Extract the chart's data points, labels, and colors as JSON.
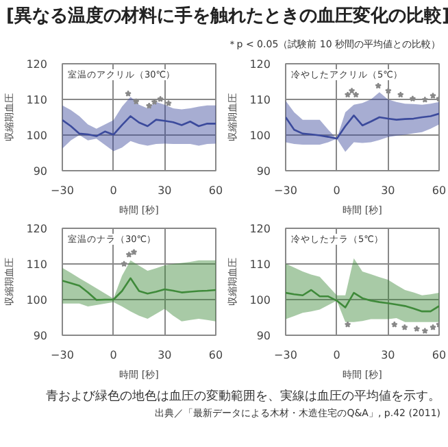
{
  "chart_data": [
    {
      "type": "other",
      "title": "[異なる温度の材料に手を触れたときの血圧変化の比較]",
      "annotations": [
        "＊p < 0.05（試験前 10 秒間の平均値との比較）"
      ]
    },
    {
      "type": "line",
      "annotations": [
        "室温のアクリル（30℃）"
      ],
      "xlabel": "時間 [秒]",
      "ylabel": "収縮期血圧",
      "xlim": [
        -30,
        60
      ],
      "ylim": [
        90,
        120
      ],
      "xticks": [
        -30,
        0,
        30,
        60
      ],
      "yticks": [
        90,
        100,
        110,
        120
      ],
      "grid": true,
      "series": [
        {
          "type": "line",
          "color": "#3b4a9c",
          "x": [
            -30,
            -25,
            -20,
            -15,
            -10,
            -5,
            0,
            5,
            10,
            15,
            20,
            25,
            30,
            35,
            40,
            45,
            50,
            55,
            60
          ],
          "values": [
            104.2,
            102.5,
            100.4,
            100.2,
            99.7,
            101.0,
            100.1,
            102.8,
            105.3,
            103.5,
            102.5,
            104.3,
            104.0,
            103.6,
            102.8,
            103.8,
            102.5,
            103.2,
            103.2
          ],
          "upper": [
            108.3,
            107,
            105.3,
            103,
            101.8,
            null,
            104.2,
            108,
            110.7,
            108.5,
            107.5,
            109.3,
            108.5,
            107.5,
            107.2,
            107.5,
            108,
            108.3,
            108.3
          ],
          "lower": [
            96.2,
            98.5,
            100,
            98.5,
            99,
            null,
            95.5,
            96.5,
            98.3,
            97.5,
            97,
            97.5,
            97.6,
            97.5,
            97.5,
            97.5,
            97,
            97.5,
            97.6
          ]
        },
        {
          "type": "scatter",
          "marker": "star",
          "color": "#888888",
          "x": [
            8.6,
            13.3,
            20.9,
            24,
            27.5,
            32.3
          ],
          "values": [
            111.6,
            109.4,
            108.2,
            109.3,
            110.1,
            108.9
          ]
        }
      ]
    },
    {
      "type": "line",
      "annotations": [
        "冷やしたアクリル（5℃）"
      ],
      "xlabel": "時間 [秒]",
      "ylabel": "収縮期血圧",
      "xlim": [
        -30,
        60
      ],
      "ylim": [
        90,
        120
      ],
      "xticks": [
        -30,
        0,
        30,
        60
      ],
      "yticks": [
        90,
        100,
        110,
        120
      ],
      "grid": true,
      "series": [
        {
          "type": "line",
          "color": "#3b4a9c",
          "x": [
            -30,
            -25,
            -20,
            -15,
            -10,
            -5,
            0,
            5,
            10,
            15,
            20,
            25,
            30,
            35,
            40,
            45,
            50,
            55,
            60
          ],
          "values": [
            105,
            101.5,
            100.4,
            100.2,
            99.9,
            99.5,
            99,
            102.5,
            105.5,
            102.7,
            103.8,
            105,
            104.6,
            104.3,
            104.5,
            104.6,
            105,
            105.3,
            106
          ],
          "upper": [
            109.6,
            106.4,
            104.3,
            104.3,
            104.3,
            101.5,
            99,
            106.4,
            108.5,
            109,
            110,
            112,
            110,
            109.3,
            108.8,
            108.7,
            108.5,
            108.8,
            109.3
          ],
          "lower": [
            98,
            97.5,
            97.3,
            97.3,
            97.3,
            98,
            99,
            95.3,
            98,
            97.8,
            98,
            98.6,
            99.4,
            99.8,
            100.1,
            100.5,
            100.8,
            101.8,
            103
          ]
        },
        {
          "type": "scatter",
          "marker": "star",
          "color": "#888888",
          "x": [
            6.4,
            8.8,
            11.2,
            24.3,
            30.2,
            37.4,
            44.5,
            51.7,
            56.4,
            60
          ],
          "values": [
            111.3,
            112.4,
            111.3,
            113.8,
            112.4,
            111.3,
            110.2,
            109.9,
            111,
            110.2
          ]
        }
      ]
    },
    {
      "type": "line",
      "annotations": [
        "室温のナラ（30℃）"
      ],
      "xlabel": "時間 [秒]",
      "ylabel": "収縮期血圧",
      "xlim": [
        -30,
        60
      ],
      "ylim": [
        90,
        120
      ],
      "xticks": [
        -30,
        0,
        30,
        60
      ],
      "yticks": [
        90,
        100,
        110,
        120
      ],
      "grid": true,
      "series": [
        {
          "type": "line",
          "color": "#3f8a3a",
          "x": [
            -30,
            -25,
            -20,
            -15,
            -10,
            -5,
            0,
            5,
            10,
            15,
            20,
            25,
            30,
            35,
            40,
            45,
            50,
            55,
            60
          ],
          "values": [
            105.3,
            104.6,
            103.9,
            102,
            99.9,
            100,
            100,
            102.4,
            106,
            102.4,
            101.7,
            102.2,
            102.9,
            102.5,
            102,
            102.2,
            102.4,
            102.5,
            102.7
          ],
          "upper": [
            108.9,
            107.5,
            106,
            104.6,
            null,
            null,
            100.3,
            106.7,
            111,
            109.5,
            108.1,
            108.8,
            109.6,
            110,
            110.3,
            110.6,
            111,
            111,
            111
          ],
          "lower": [
            98.9,
            98.9,
            98.9,
            98.1,
            null,
            null,
            99.3,
            98.1,
            96.7,
            95.5,
            94.6,
            96,
            97.4,
            95.5,
            93.9,
            94.3,
            94.6,
            94.3,
            93.9
          ]
        },
        {
          "type": "scatter",
          "marker": "star",
          "color": "#888888",
          "x": [
            6.2,
            9.1,
            12
          ],
          "values": [
            110,
            112.6,
            113.3
          ]
        }
      ]
    },
    {
      "type": "line",
      "annotations": [
        "冷やしたナラ（5℃）"
      ],
      "xlabel": "時間 [秒]",
      "ylabel": "収縮期血圧",
      "xlim": [
        -30,
        60
      ],
      "ylim": [
        90,
        120
      ],
      "xticks": [
        -30,
        0,
        30,
        60
      ],
      "yticks": [
        90,
        100,
        110,
        120
      ],
      "grid": true,
      "series": [
        {
          "type": "line",
          "color": "#3f8a3a",
          "x": [
            -30,
            -25,
            -20,
            -15,
            -10,
            -5,
            0,
            5,
            10,
            15,
            20,
            25,
            30,
            35,
            40,
            45,
            50,
            55,
            60
          ],
          "values": [
            101.9,
            101.5,
            101.2,
            102.7,
            100.9,
            100.9,
            99.7,
            97.8,
            101.9,
            100.4,
            99.7,
            99.3,
            99,
            98.6,
            98.2,
            97.5,
            96.7,
            96.7,
            98.2
          ],
          "upper": [
            110.1,
            109,
            107.9,
            107,
            106.4,
            null,
            101.2,
            101.2,
            111.6,
            107.9,
            107.1,
            106.3,
            105.6,
            104.1,
            102.7,
            102,
            101.2,
            101.5,
            101.9
          ],
          "lower": [
            94.5,
            95.4,
            96.3,
            96.7,
            97.2,
            null,
            99.7,
            93.7,
            93.7,
            94,
            94.5,
            94.5,
            94.5,
            94.8,
            93.7,
            93.7,
            93.7,
            93.7,
            93.7
          ]
        },
        {
          "type": "scatter",
          "marker": "star",
          "color": "#888888",
          "x": [
            6.4,
            33.8,
            39.8,
            46.9,
            51.7,
            56.4,
            60
          ],
          "values": [
            93,
            93,
            92.2,
            91.8,
            91.2,
            92.2,
            93
          ]
        }
      ]
    },
    {
      "type": "other",
      "annotations": [
        "青および緑色の地色は血圧の変動範囲を、実線は血圧の平均値を示す。",
        "出典／「最新データによる木材・木造住宅のQ&A」, p.42 (2011)"
      ]
    }
  ]
}
